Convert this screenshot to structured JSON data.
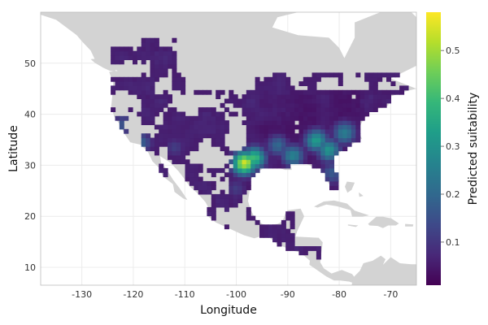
{
  "chart_data": {
    "type": "heatmap",
    "xlabel": "Longitude",
    "ylabel": "Latitude",
    "xlim": [
      -138,
      -65
    ],
    "ylim": [
      6.5,
      60
    ],
    "x_ticks": [
      -130,
      -120,
      -110,
      -100,
      -90,
      -80,
      -70
    ],
    "x_tick_labels": [
      "-130",
      "-120",
      "-110",
      "-100",
      "-90",
      "-80",
      "-70"
    ],
    "y_ticks": [
      10,
      20,
      30,
      40,
      50
    ],
    "y_tick_labels": [
      "10",
      "20",
      "30",
      "40",
      "50"
    ],
    "colorbar": {
      "label": "Predicted suitability",
      "range": [
        0.01,
        0.58
      ],
      "ticks": [
        0.1,
        0.2,
        0.3,
        0.4,
        0.5
      ],
      "tick_labels": [
        "0.1",
        "0.2",
        "0.3",
        "0.4",
        "0.5"
      ],
      "colormap": "viridis"
    },
    "grid": true,
    "background_land_color": "#d3d3d3",
    "ocean_color": "#ffffff",
    "suitability_hotspots": [
      {
        "lon": -98.5,
        "lat": 30.5,
        "value": 0.58
      },
      {
        "lon": -96.5,
        "lat": 31.5,
        "value": 0.42
      },
      {
        "lon": -84.5,
        "lat": 35.0,
        "value": 0.35
      },
      {
        "lon": -82.0,
        "lat": 33.0,
        "value": 0.33
      },
      {
        "lon": -89.0,
        "lat": 32.0,
        "value": 0.3
      },
      {
        "lon": -79.0,
        "lat": 36.5,
        "value": 0.3
      },
      {
        "lon": -92.0,
        "lat": 34.0,
        "value": 0.22
      },
      {
        "lon": -81.5,
        "lat": 28.5,
        "value": 0.2
      },
      {
        "lon": -118.5,
        "lat": 34.5,
        "value": 0.2
      },
      {
        "lon": -122.0,
        "lat": 38.0,
        "value": 0.18
      },
      {
        "lon": -112.0,
        "lat": 33.5,
        "value": 0.12
      },
      {
        "lon": -100.0,
        "lat": 25.5,
        "value": 0.12
      },
      {
        "lon": -103.0,
        "lat": 21.0,
        "value": 0.1
      }
    ]
  }
}
